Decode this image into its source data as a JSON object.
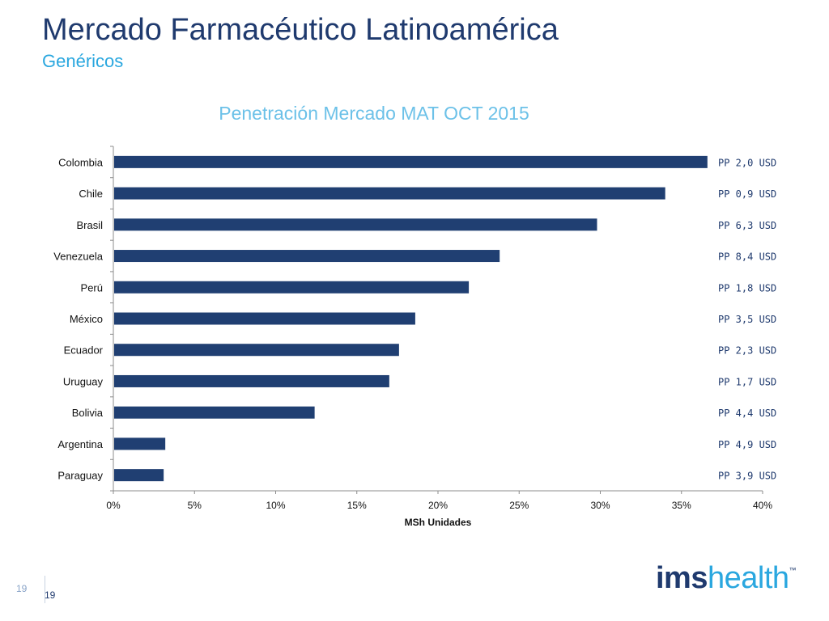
{
  "slide": {
    "title": "Mercado Farmacéutico Latinoamérica",
    "subtitle": "Genéricos",
    "page_number_left": "19",
    "page_number_right": "19",
    "logo_ims": "ims",
    "logo_health": "health",
    "logo_tm": "™"
  },
  "colors": {
    "bar": "#203f72",
    "axis": "#8c8c8c",
    "pp_text": "#1f3a6e",
    "pp_text_first": "#8fa8c6"
  },
  "chart_data": {
    "type": "bar",
    "orientation": "horizontal",
    "title": "Penetración Mercado MAT OCT 2015",
    "xlabel": "MSh Unidades",
    "ylabel": "",
    "categories": [
      "Colombia",
      "Chile",
      "Brasil",
      "Venezuela",
      "Perú",
      "México",
      "Ecuador",
      "Uruguay",
      "Bolivia",
      "Argentina",
      "Paraguay"
    ],
    "values": [
      0.366,
      0.34,
      0.298,
      0.238,
      0.219,
      0.186,
      0.176,
      0.17,
      0.124,
      0.032,
      0.031
    ],
    "xlim": [
      0,
      0.4
    ],
    "xticks": [
      0,
      0.05,
      0.1,
      0.15,
      0.2,
      0.25,
      0.3,
      0.35,
      0.4
    ],
    "xtick_labels": [
      "0%",
      "5%",
      "10%",
      "15%",
      "20%",
      "25%",
      "30%",
      "35%",
      "40%"
    ],
    "grid": false,
    "legend": "none",
    "annotations": [
      "PP 2,0 USD",
      "PP 0,9 USD",
      "PP 6,3 USD",
      "PP 8,4 USD",
      "PP 1,8 USD",
      "PP 3,5 USD",
      "PP 2,3 USD",
      "PP 1,7 USD",
      "PP 4,4 USD",
      "PP 4,9 USD",
      "PP 3,9 USD"
    ]
  }
}
